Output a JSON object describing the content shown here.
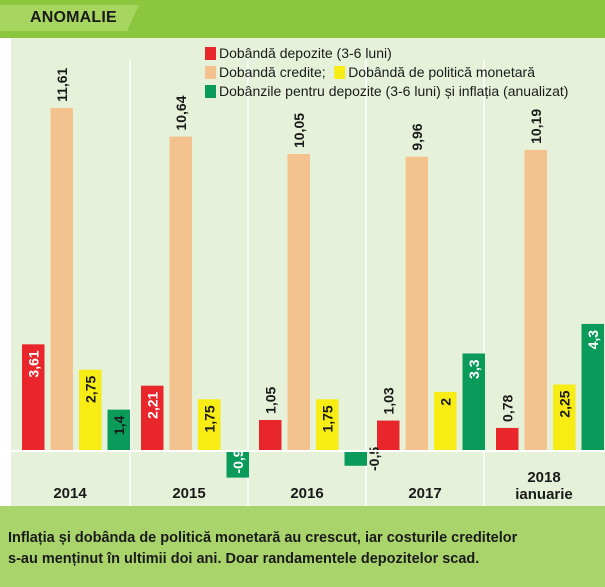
{
  "header": {
    "label": "ANOMALIE"
  },
  "caption": "Inflația și dobânda de politică monetară au crescut, iar costurile creditelor\ns-au menținut în ultimii doi ani. Doar randamentele depozitelor scad.",
  "colors": {
    "header_bg": "#8cc63f",
    "plot_bg": "#e6f1d9",
    "caption_bg": "#a9d46c",
    "deposits": "#e8262b",
    "credits": "#f4c28e",
    "policy": "#f7ec14",
    "real": "#0a9b5a"
  },
  "chart_data": {
    "type": "bar",
    "categories": [
      "2014",
      "2015",
      "2016",
      "2017",
      "2018\nianuarie"
    ],
    "series": [
      {
        "name": "Dobândă depozite (3-6 luni)",
        "color_key": "deposits",
        "values": [
          3.61,
          2.21,
          1.05,
          1.03,
          0.78
        ],
        "labels": [
          "3,61",
          "2,21",
          "1,05",
          "1,03",
          "0,78"
        ]
      },
      {
        "name": "Dobandă credite;",
        "color_key": "credits",
        "values": [
          11.61,
          10.64,
          10.05,
          9.96,
          10.19
        ],
        "labels": [
          "11,61",
          "10,64",
          "10,05",
          "9,96",
          "10,19"
        ]
      },
      {
        "name": "Dobândă de politică monetară",
        "color_key": "policy",
        "values": [
          2.75,
          1.75,
          1.75,
          2,
          2.25
        ],
        "labels": [
          "2,75",
          "1,75",
          "1,75",
          "2",
          "2,25"
        ]
      },
      {
        "name": "Dobânzile pentru depozite (3-6 luni) și inflația (anualizat)",
        "color_key": "real",
        "values": [
          1.4,
          -0.9,
          -0.5,
          3.3,
          4.3
        ],
        "labels": [
          "1,4",
          "-0,9",
          "-0,5",
          "3,3",
          "4,3"
        ]
      }
    ],
    "legend_rows": [
      [
        0
      ],
      [
        1,
        2
      ],
      [
        3
      ]
    ],
    "legend_position": "top-right",
    "ylim": [
      -1.2,
      13.4
    ],
    "grid": false,
    "title": "",
    "xlabel": "",
    "ylabel": ""
  }
}
